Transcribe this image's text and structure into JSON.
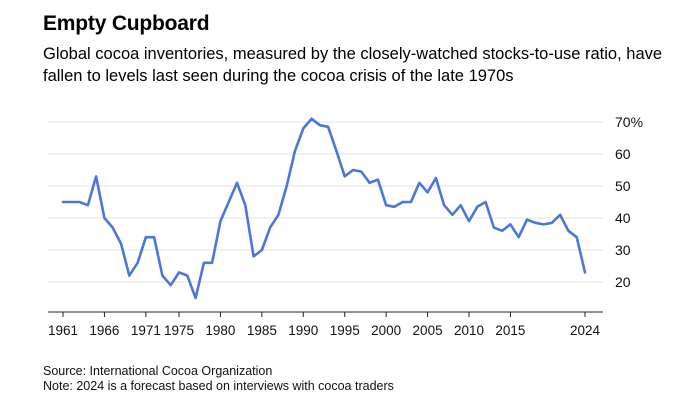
{
  "header": {
    "title": "Empty Cupboard",
    "subtitle": "Global cocoa inventories, measured by the closely-watched stocks-to-use ratio, have fallen to levels last seen during the cocoa crisis of the late 1970s"
  },
  "footer": {
    "source": "Source: International Cocoa Organization",
    "note": "Note: 2024 is a forecast based on interviews with cocoa traders"
  },
  "chart_data": {
    "type": "line",
    "xlim": [
      1961,
      2024
    ],
    "ylim": [
      15,
      70
    ],
    "x_ticks": [
      1961,
      1966,
      1971,
      1975,
      1980,
      1985,
      1990,
      1995,
      2000,
      2005,
      2010,
      2015,
      2024
    ],
    "y_ticks": [
      20,
      30,
      40,
      50,
      60,
      70
    ],
    "y_tick_labels": [
      "20",
      "30",
      "40",
      "50",
      "60",
      "70%"
    ],
    "grid": true,
    "line_color": "#4a77d9",
    "series": [
      {
        "x": [
          1961,
          1962,
          1963,
          1964,
          1965,
          1966,
          1967,
          1968,
          1969,
          1970,
          1971,
          1972,
          1973,
          1974,
          1975,
          1976,
          1977,
          1978,
          1979,
          1980,
          1981,
          1982,
          1983,
          1984,
          1985,
          1986,
          1987,
          1988,
          1989,
          1990,
          1991,
          1992,
          1993,
          1994,
          1995,
          1996,
          1997,
          1998,
          1999,
          2000,
          2001,
          2002,
          2003,
          2004,
          2005,
          2006,
          2007,
          2008,
          2009,
          2010,
          2011,
          2012,
          2013,
          2014,
          2015,
          2016,
          2017,
          2018,
          2019,
          2020,
          2021,
          2022,
          2023,
          2024
        ],
        "y": [
          45,
          45,
          45,
          44,
          53,
          40,
          37,
          32,
          22,
          26,
          34,
          34,
          22,
          19,
          23,
          22,
          15,
          26,
          26,
          39,
          45,
          51,
          44,
          28,
          30,
          37,
          41,
          50,
          61,
          68,
          71,
          69,
          68.5,
          61,
          53,
          55,
          54.5,
          51,
          52,
          44,
          43.5,
          45,
          45,
          51,
          48,
          52.5,
          44,
          41,
          44,
          39,
          43.5,
          45,
          37,
          36,
          38,
          34,
          39.5,
          38.5,
          38,
          38.5,
          41,
          36,
          34,
          23
        ]
      }
    ]
  }
}
